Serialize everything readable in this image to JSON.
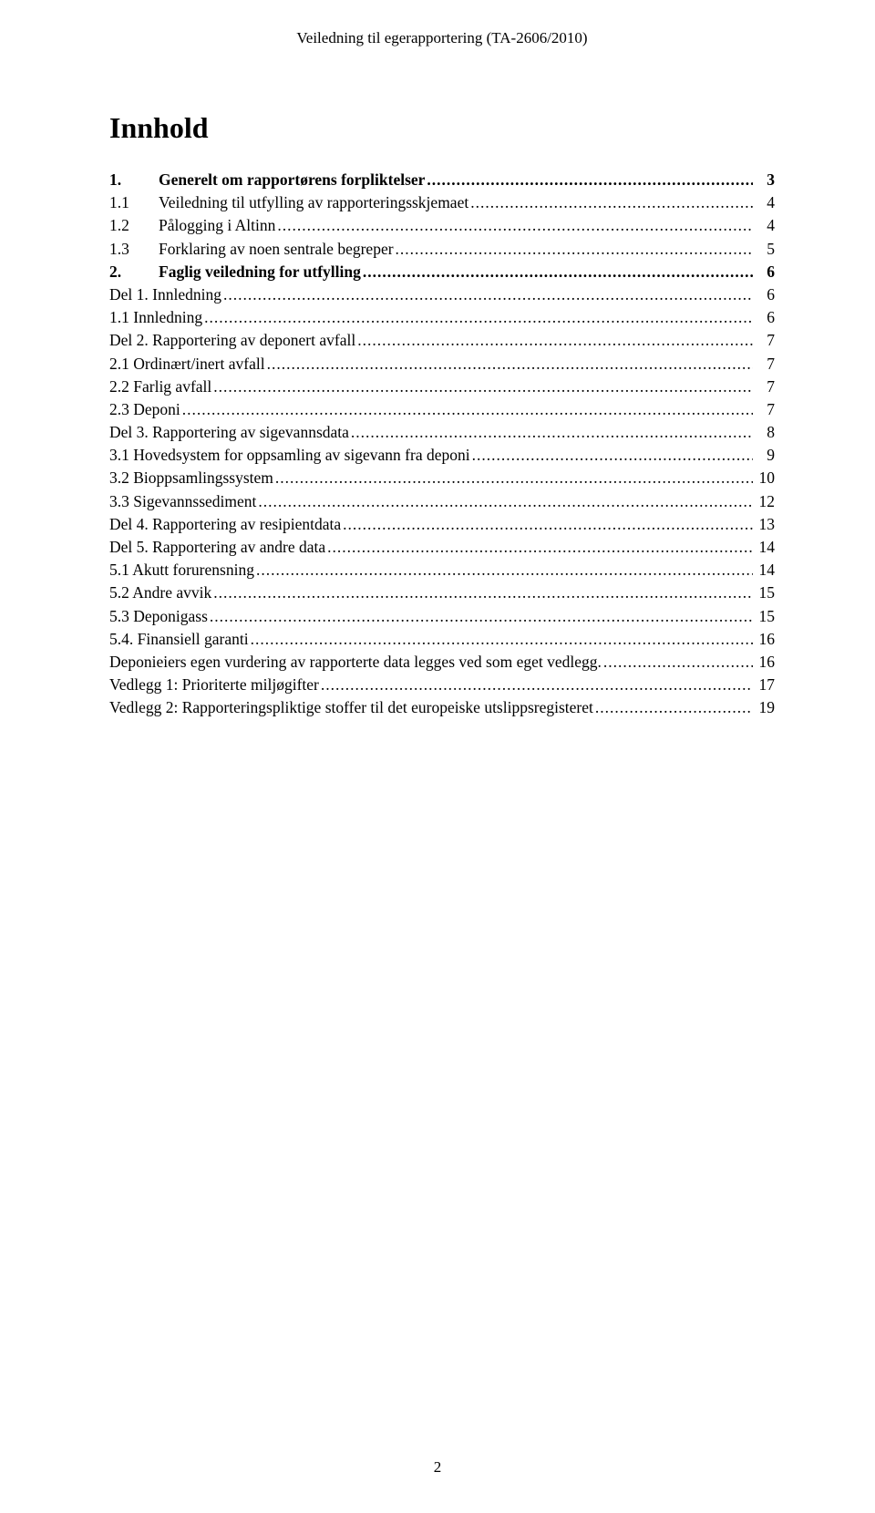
{
  "header": "Veiledning til egerapportering (TA-2606/2010)",
  "title": "Innhold",
  "footer_page": "2",
  "entries": [
    {
      "num": "1.",
      "label": "Generelt om rapportørens forpliktelser",
      "page": "3",
      "bold": true,
      "numcol": "wide"
    },
    {
      "num": "1.1",
      "label": "Veiledning til utfylling av rapporteringsskjemaet",
      "page": "4",
      "bold": false,
      "numcol": "wide"
    },
    {
      "num": "1.2",
      "label": "Pålogging i Altinn",
      "page": "4",
      "bold": false,
      "numcol": "wide"
    },
    {
      "num": "1.3",
      "label": "Forklaring av noen sentrale begreper",
      "page": "5",
      "bold": false,
      "numcol": "wide"
    },
    {
      "num": "2.",
      "label": "Faglig veiledning for utfylling",
      "page": "6",
      "bold": true,
      "numcol": "wide"
    },
    {
      "num": "",
      "label": "Del 1. Innledning",
      "page": "6",
      "bold": false,
      "numcol": "blank"
    },
    {
      "num": "",
      "label": "1.1 Innledning",
      "page": "6",
      "bold": false,
      "numcol": "blank"
    },
    {
      "num": "",
      "label": "Del 2. Rapportering av deponert avfall",
      "page": "7",
      "bold": false,
      "numcol": "blank"
    },
    {
      "num": "",
      "label": "2.1 Ordinært/inert avfall",
      "page": "7",
      "bold": false,
      "numcol": "blank"
    },
    {
      "num": "",
      "label": "2.2 Farlig avfall",
      "page": "7",
      "bold": false,
      "numcol": "blank"
    },
    {
      "num": "",
      "label": "2.3 Deponi",
      "page": "7",
      "bold": false,
      "numcol": "blank"
    },
    {
      "num": "",
      "label": "Del 3. Rapportering av sigevannsdata",
      "page": "8",
      "bold": false,
      "numcol": "blank"
    },
    {
      "num": "",
      "label": "3.1 Hovedsystem for oppsamling av sigevann fra deponi",
      "page": "9",
      "bold": false,
      "numcol": "blank"
    },
    {
      "num": "",
      "label": "3.2 Bioppsamlingssystem",
      "page": "10",
      "bold": false,
      "numcol": "blank"
    },
    {
      "num": "",
      "label": "3.3 Sigevannssediment",
      "page": "12",
      "bold": false,
      "numcol": "blank"
    },
    {
      "num": "",
      "label": "Del 4. Rapportering av resipientdata",
      "page": "13",
      "bold": false,
      "numcol": "blank"
    },
    {
      "num": "",
      "label": "Del 5. Rapportering av andre data",
      "page": "14",
      "bold": false,
      "numcol": "blank"
    },
    {
      "num": "",
      "label": "5.1 Akutt forurensning",
      "page": "14",
      "bold": false,
      "numcol": "blank"
    },
    {
      "num": "",
      "label": "5.2 Andre avvik",
      "page": "15",
      "bold": false,
      "numcol": "blank"
    },
    {
      "num": "",
      "label": "5.3 Deponigass",
      "page": "15",
      "bold": false,
      "numcol": "blank"
    },
    {
      "num": "",
      "label": "5.4. Finansiell garanti",
      "page": "16",
      "bold": false,
      "numcol": "blank"
    },
    {
      "num": "",
      "label": "Deponieiers egen vurdering av rapporterte data legges ved som eget vedlegg.",
      "page": "16",
      "bold": false,
      "numcol": "blank"
    },
    {
      "num": "",
      "label": "Vedlegg 1: Prioriterte miljøgifter",
      "page": "17",
      "bold": false,
      "numcol": "blank"
    },
    {
      "num": "",
      "label": "Vedlegg 2: Rapporteringspliktige stoffer til det europeiske utslippsregisteret",
      "page": "19",
      "bold": false,
      "numcol": "blank"
    }
  ]
}
